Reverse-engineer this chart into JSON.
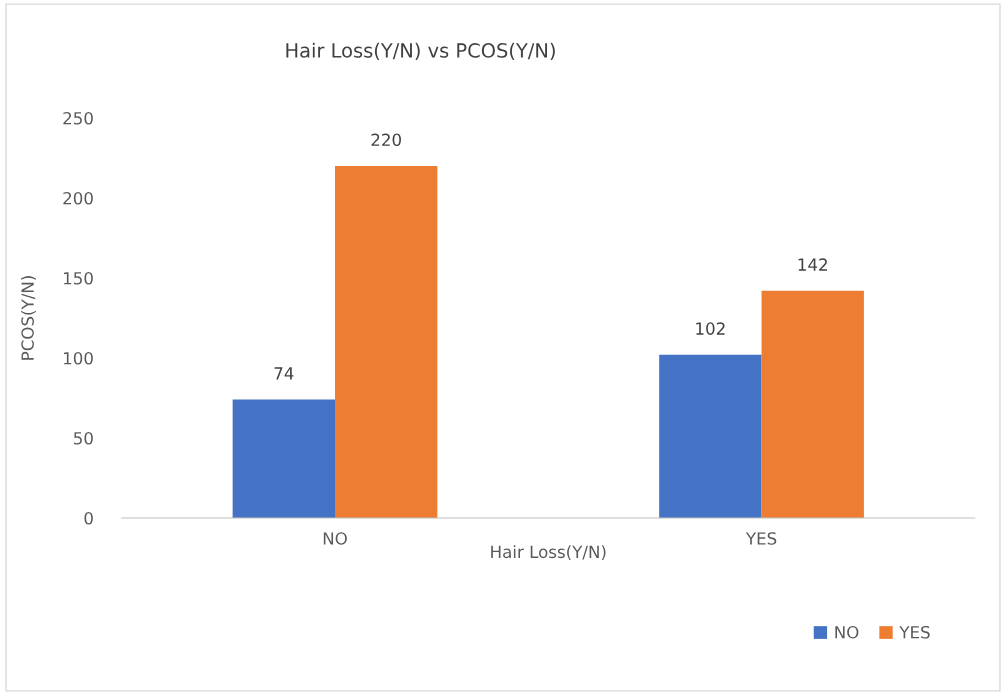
{
  "chart_data": {
    "type": "bar",
    "title": "Hair Loss(Y/N) vs PCOS(Y/N)",
    "xlabel": "Hair Loss(Y/N)",
    "ylabel": "PCOS(Y/N)",
    "categories": [
      "NO",
      "YES"
    ],
    "series": [
      {
        "name": "NO",
        "color": "#4472c4",
        "values": [
          74,
          102
        ]
      },
      {
        "name": "YES",
        "color": "#ed7d31",
        "values": [
          220,
          142
        ]
      }
    ],
    "ylim": [
      0,
      250
    ],
    "yticks": [
      0,
      50,
      100,
      150,
      200,
      250
    ],
    "grid": false,
    "data_labels": true,
    "legend": "bottom right"
  }
}
